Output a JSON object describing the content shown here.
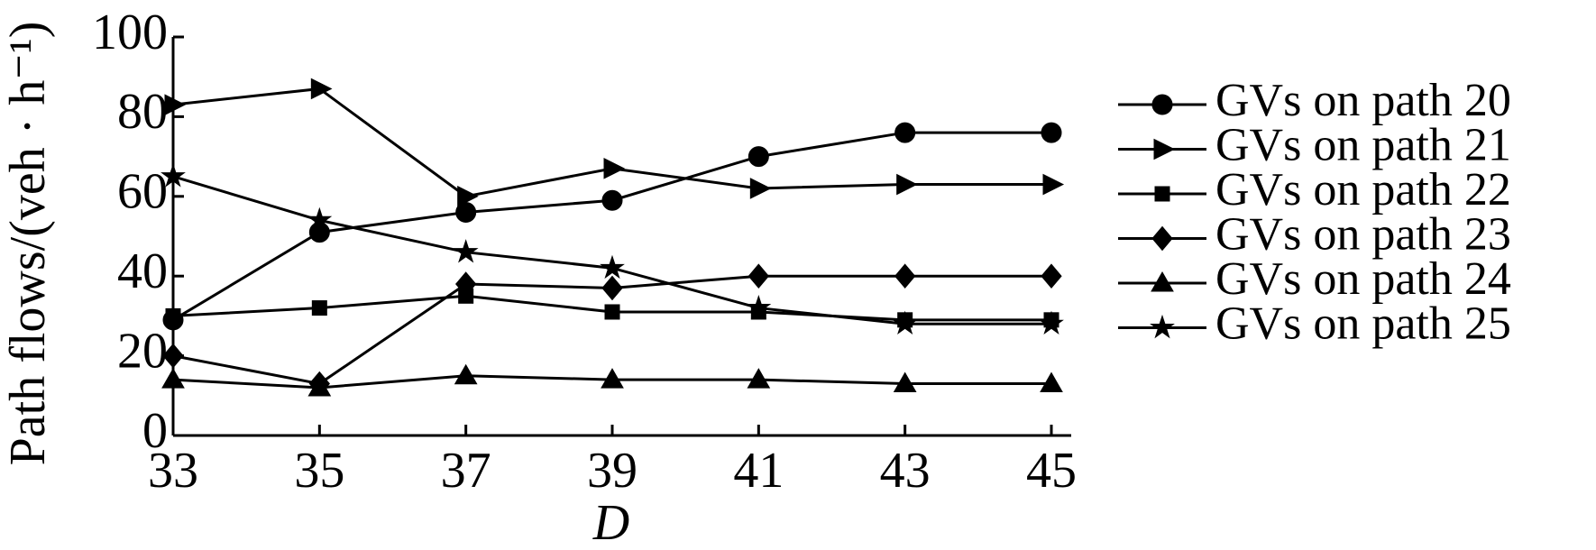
{
  "chart_data": {
    "type": "line",
    "xlabel": "D",
    "ylabel": "Path flows/(veh · h⁻¹)",
    "x": [
      33,
      35,
      37,
      39,
      41,
      43,
      45
    ],
    "xlim": [
      33,
      45
    ],
    "xticks": [
      33,
      35,
      37,
      39,
      41,
      43,
      45
    ],
    "ylim": [
      0,
      100
    ],
    "yticks": [
      0,
      20,
      40,
      60,
      80,
      100
    ],
    "grid": false,
    "legend": "right",
    "series": [
      {
        "name": "GVs on path 20",
        "color": "#000000",
        "marker": "circle",
        "values": [
          29,
          51,
          56,
          59,
          70,
          76,
          76
        ]
      },
      {
        "name": "GVs on path 21",
        "color": "#000000",
        "marker": "triangle-right",
        "values": [
          83,
          87,
          60,
          67,
          62,
          63,
          63
        ]
      },
      {
        "name": "GVs on path 22",
        "color": "#000000",
        "marker": "square",
        "values": [
          30,
          32,
          35,
          31,
          31,
          29,
          29
        ]
      },
      {
        "name": "GVs on path 23",
        "color": "#000000",
        "marker": "diamond",
        "values": [
          20,
          13,
          38,
          37,
          40,
          40,
          40
        ]
      },
      {
        "name": "GVs on path 24",
        "color": "#000000",
        "marker": "triangle-up",
        "values": [
          14,
          12,
          15,
          14,
          14,
          13,
          13
        ]
      },
      {
        "name": "GVs on path 25",
        "color": "#000000",
        "marker": "star",
        "values": [
          65,
          54,
          46,
          42,
          32,
          28,
          28
        ]
      }
    ]
  }
}
